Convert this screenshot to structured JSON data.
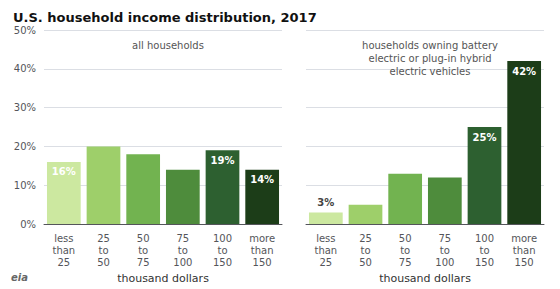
{
  "chart_data": {
    "type": "bar",
    "title": "U.S. household income distribution, 2017",
    "xlabel": "thousand dollars",
    "categories": [
      "less\nthan\n25",
      "25\nto\n50",
      "50\nto\n75",
      "75\nto\n100",
      "100\nto\n150",
      "more\nthan\n150"
    ],
    "series": [
      {
        "name": "all households",
        "values": [
          16,
          20,
          18,
          14,
          19,
          14
        ],
        "colors": [
          "#cce8a0",
          "#9ecf6a",
          "#72b350",
          "#4e8c3c",
          "#2d6030",
          "#1c3d18"
        ],
        "value_labels": [
          "16%",
          null,
          null,
          null,
          "19%",
          "14%"
        ]
      },
      {
        "name": "households owning battery\nelectric or plug-in hybrid\nelectric vehicles",
        "values": [
          3,
          5,
          13,
          12,
          25,
          42
        ],
        "colors": [
          "#cce8a0",
          "#9ecf6a",
          "#72b350",
          "#4e8c3c",
          "#2d6030",
          "#1c3d18"
        ],
        "value_labels": [
          "3%",
          null,
          null,
          null,
          "25%",
          "42%"
        ]
      }
    ],
    "ylim": [
      0,
      50
    ],
    "yticks": [
      {
        "value": 0,
        "label": "0%"
      },
      {
        "value": 10,
        "label": "10%"
      },
      {
        "value": 20,
        "label": "20%"
      },
      {
        "value": 30,
        "label": "30%"
      },
      {
        "value": 40,
        "label": "40%"
      },
      {
        "value": 50,
        "label": "50%"
      }
    ],
    "grid": true,
    "annotations": [
      "eia"
    ]
  }
}
